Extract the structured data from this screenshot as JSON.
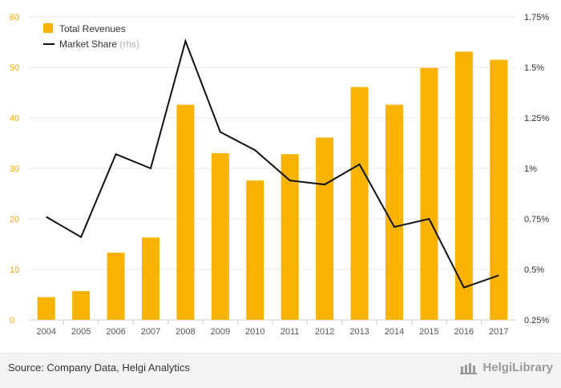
{
  "chart_data": {
    "type": "bar+line",
    "categories": [
      "2004",
      "2005",
      "2006",
      "2007",
      "2008",
      "2009",
      "2010",
      "2011",
      "2012",
      "2013",
      "2014",
      "2015",
      "2016",
      "2017"
    ],
    "series": [
      {
        "name": "Total Revenues",
        "type": "bar",
        "axis": "left",
        "color": "#f8b300",
        "values": [
          4.5,
          5.7,
          13.3,
          16.3,
          42.6,
          33.0,
          27.6,
          32.8,
          36.1,
          46.1,
          42.6,
          49.9,
          53.1,
          51.5
        ]
      },
      {
        "name": "Market Share",
        "legend_suffix": "(rhs)",
        "type": "line",
        "axis": "right",
        "color": "#111111",
        "values": [
          0.76,
          0.66,
          1.07,
          1.0,
          1.63,
          1.18,
          1.09,
          0.94,
          0.92,
          1.02,
          0.71,
          0.75,
          0.41,
          0.47
        ]
      }
    ],
    "left_axis": {
      "ylim": [
        0,
        60
      ],
      "ticks": [
        0,
        10,
        20,
        30,
        40,
        50,
        60
      ],
      "tick_labels": [
        "0",
        "10",
        "20",
        "30",
        "40",
        "50",
        "60"
      ],
      "color": "#f0a800"
    },
    "right_axis": {
      "ylim": [
        0.25,
        1.75
      ],
      "ticks": [
        0.25,
        0.5,
        0.75,
        1.0,
        1.25,
        1.5,
        1.75
      ],
      "tick_labels": [
        "0.25%",
        "0.5%",
        "0.75%",
        "1%",
        "1.25%",
        "1.5%",
        "1.75%"
      ]
    },
    "grid": true,
    "legend_position": "top-left"
  },
  "footer": {
    "source": "Source: Company Data, Helgi Analytics",
    "brand": "HelgiLibrary"
  }
}
